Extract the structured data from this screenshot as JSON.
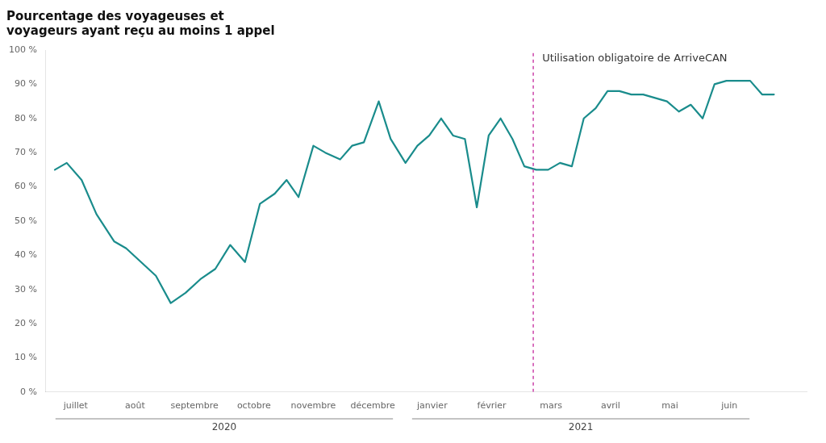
{
  "chart_data": {
    "type": "line",
    "title": "Pourcentage des voyageuses et\nvoyageurs ayant reçu au moins 1 appel",
    "color": "#1a8c8c",
    "x": [
      -0.35,
      -0.15,
      0.1,
      0.35,
      0.65,
      0.85,
      1.1,
      1.35,
      1.6,
      1.85,
      2.1,
      2.35,
      2.6,
      2.85,
      3.1,
      3.35,
      3.55,
      3.75,
      4.0,
      4.2,
      4.45,
      4.65,
      4.85,
      5.1,
      5.3,
      5.55,
      5.75,
      5.95,
      6.15,
      6.35,
      6.55,
      6.75,
      6.95,
      7.15,
      7.35,
      7.55,
      7.75,
      7.95,
      8.15,
      8.35,
      8.55,
      8.75,
      8.95,
      9.15,
      9.35,
      9.55,
      9.75,
      9.95,
      10.15,
      10.35,
      10.55,
      10.75,
      10.95,
      11.15,
      11.35,
      11.55,
      11.75
    ],
    "values": [
      65,
      67,
      62,
      52,
      44,
      42,
      38,
      34,
      26,
      29,
      33,
      36,
      43,
      38,
      55,
      58,
      62,
      57,
      72,
      70,
      68,
      72,
      73,
      85,
      74,
      67,
      72,
      75,
      80,
      75,
      74,
      54,
      75,
      80,
      74,
      66,
      65,
      65,
      67,
      66,
      80,
      83,
      88,
      88,
      87,
      87,
      86,
      85,
      82,
      84,
      80,
      90,
      91,
      91,
      91,
      87,
      87
    ],
    "xlim": [
      -0.5,
      12.3
    ],
    "xticks": [
      {
        "value": 0,
        "label": "juillet"
      },
      {
        "value": 1,
        "label": "août"
      },
      {
        "value": 2,
        "label": "septembre"
      },
      {
        "value": 3,
        "label": "octobre"
      },
      {
        "value": 4,
        "label": "novembre"
      },
      {
        "value": 5,
        "label": "décembre"
      },
      {
        "value": 6,
        "label": "janvier"
      },
      {
        "value": 7,
        "label": "février"
      },
      {
        "value": 8,
        "label": "mars"
      },
      {
        "value": 9,
        "label": "avril"
      },
      {
        "value": 10,
        "label": "mai"
      },
      {
        "value": 11,
        "label": "juin"
      }
    ],
    "x_groups": [
      {
        "label": "2020",
        "from": 0,
        "to": 5
      },
      {
        "label": "2021",
        "from": 6,
        "to": 11
      }
    ],
    "ylim": [
      0,
      100
    ],
    "yticks": [
      {
        "value": 0,
        "label": "0 %"
      },
      {
        "value": 10,
        "label": "10 %"
      },
      {
        "value": 20,
        "label": "20 %"
      },
      {
        "value": 30,
        "label": "30 %"
      },
      {
        "value": 40,
        "label": "40 %"
      },
      {
        "value": 50,
        "label": "50 %"
      },
      {
        "value": 60,
        "label": "60 %"
      },
      {
        "value": 70,
        "label": "70 %"
      },
      {
        "value": 80,
        "label": "80 %"
      },
      {
        "value": 90,
        "label": "90 %"
      },
      {
        "value": 100,
        "label": "100 %"
      }
    ],
    "vline": {
      "x": 7.7,
      "color": "#cc44aa",
      "line_style": "dashed"
    },
    "annotations": [
      {
        "text": "Utilisation obligatoire de ArriveCAN",
        "x": 7.85,
        "y": 99
      }
    ],
    "grid": false
  }
}
